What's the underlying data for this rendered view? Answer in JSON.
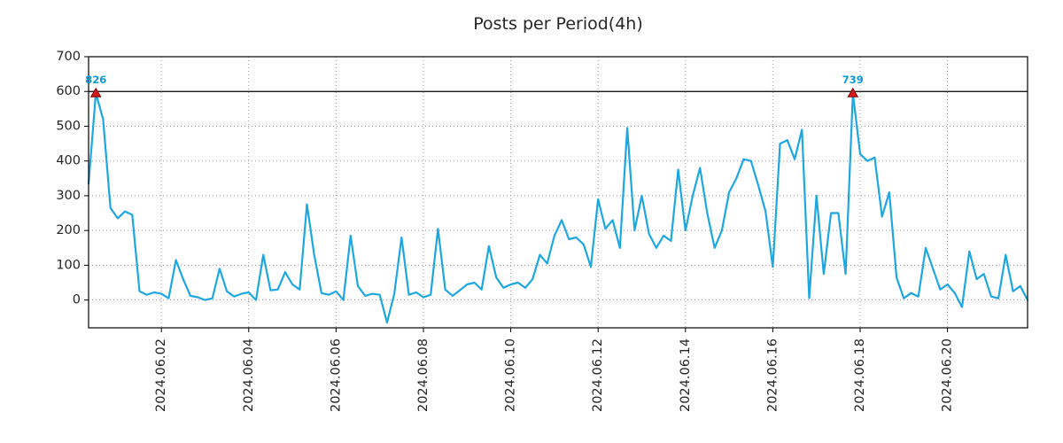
{
  "title": "Posts per Period(4h)",
  "colors": {
    "line": "#1ea7e1",
    "marker_fill": "#d7191c",
    "marker_edge": "#7f0000",
    "annotation": "#0f9ad8",
    "grid": "#999999",
    "axis": "#000000",
    "threshold": "#000000",
    "tick_text": "#262626",
    "background": "#ffffff"
  },
  "chart_data": {
    "type": "line",
    "title": "Posts per Period(4h)",
    "x_period_hours": 4,
    "values": [
      335,
      826,
      520,
      265,
      235,
      255,
      245,
      25,
      15,
      22,
      18,
      5,
      115,
      60,
      12,
      8,
      0,
      5,
      90,
      25,
      10,
      18,
      22,
      0,
      130,
      28,
      30,
      80,
      45,
      30,
      275,
      130,
      20,
      15,
      25,
      0,
      185,
      40,
      12,
      18,
      15,
      -65,
      18,
      180,
      15,
      22,
      8,
      15,
      205,
      30,
      12,
      28,
      45,
      50,
      30,
      155,
      65,
      35,
      45,
      50,
      35,
      60,
      130,
      105,
      185,
      230,
      175,
      180,
      160,
      95,
      290,
      205,
      230,
      150,
      495,
      200,
      300,
      190,
      150,
      185,
      170,
      375,
      200,
      300,
      380,
      250,
      150,
      200,
      310,
      350,
      405,
      400,
      330,
      255,
      95,
      450,
      460,
      405,
      490,
      5,
      300,
      75,
      250,
      250,
      75,
      739,
      420,
      400,
      410,
      240,
      310,
      65,
      5,
      20,
      10,
      150,
      90,
      30,
      45,
      20,
      -20,
      140,
      60,
      75,
      10,
      5,
      130,
      25,
      40,
      0
    ],
    "x_tick_labels": [
      "2024.06.02",
      "2024.06.04",
      "2024.06.06",
      "2024.06.08",
      "2024.06.10",
      "2024.06.12",
      "2024.06.14",
      "2024.06.16",
      "2024.06.18",
      "2024.06.20"
    ],
    "x_tick_indices": [
      10,
      22,
      34,
      46,
      58,
      70,
      82,
      94,
      106,
      118
    ],
    "y_ticks": [
      0,
      100,
      200,
      300,
      400,
      500,
      600,
      700
    ],
    "ylim": [
      -80,
      700
    ],
    "threshold_line": 600,
    "display_clip_max": 595,
    "grid": true,
    "legend": false,
    "annotations": [
      {
        "index": 1,
        "value": 826,
        "label": "826"
      },
      {
        "index": 105,
        "value": 739,
        "label": "739"
      }
    ]
  }
}
